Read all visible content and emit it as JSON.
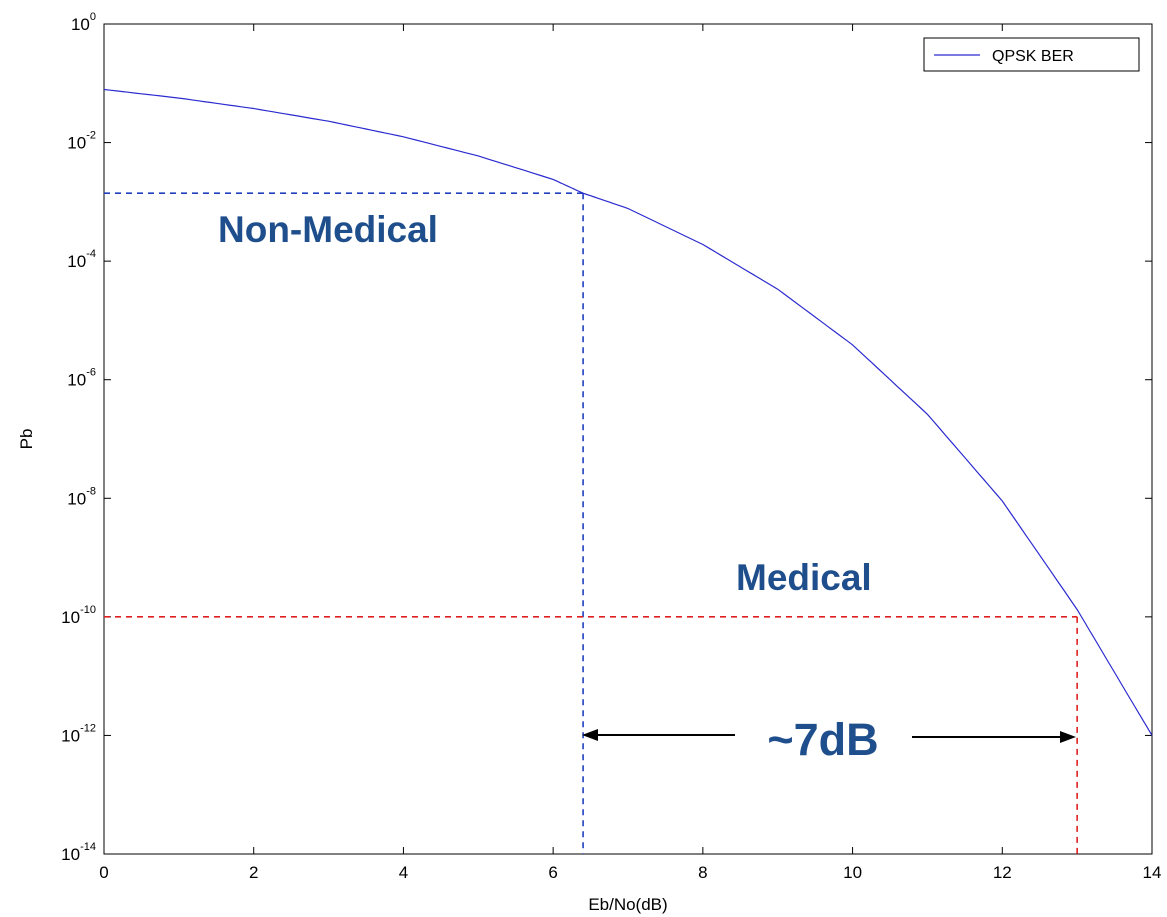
{
  "chart_data": {
    "type": "line",
    "xlabel": "Eb/No(dB)",
    "ylabel": "Pb",
    "xlim": [
      0,
      14
    ],
    "ylim": [
      1e-14,
      1
    ],
    "yscale": "log",
    "grid": false,
    "x_ticks": [
      "0",
      "2",
      "4",
      "6",
      "8",
      "10",
      "12",
      "14"
    ],
    "y_ticks": [
      {
        "base": "10",
        "exp": "0"
      },
      {
        "base": "10",
        "exp": "-2"
      },
      {
        "base": "10",
        "exp": "-4"
      },
      {
        "base": "10",
        "exp": "-6"
      },
      {
        "base": "10",
        "exp": "-8"
      },
      {
        "base": "10",
        "exp": "-10"
      },
      {
        "base": "10",
        "exp": "-12"
      },
      {
        "base": "10",
        "exp": "-14"
      }
    ],
    "legend": {
      "placement": "top-right",
      "entries": [
        "QPSK BER"
      ]
    },
    "series": [
      {
        "name": "QPSK BER",
        "color": "#2b2bd0",
        "x": [
          0,
          1,
          2,
          3,
          4,
          5,
          6,
          6.4,
          7,
          8,
          9,
          10,
          11,
          12,
          13,
          14
        ],
        "y": [
          0.0786,
          0.0563,
          0.0375,
          0.0229,
          0.0125,
          0.00595,
          0.00239,
          0.0014,
          0.000773,
          0.000191,
          3.36e-05,
          3.87e-06,
          2.61e-07,
          9.01e-09,
          1.33e-10,
          1e-12
        ]
      }
    ],
    "reference_lines": [
      {
        "name": "Non-Medical",
        "color": "#2040c0",
        "x": 6.4,
        "y": 0.0014
      },
      {
        "name": "Medical",
        "color": "#e02020",
        "x": 13.0,
        "y": 1e-10
      }
    ],
    "annotations": {
      "non_medical": "Non-Medical",
      "medical": "Medical",
      "gap": "~7dB"
    },
    "colors": {
      "axis": "#000000",
      "annotation_text": "#1f4e8c",
      "arrow": "#000000"
    }
  }
}
